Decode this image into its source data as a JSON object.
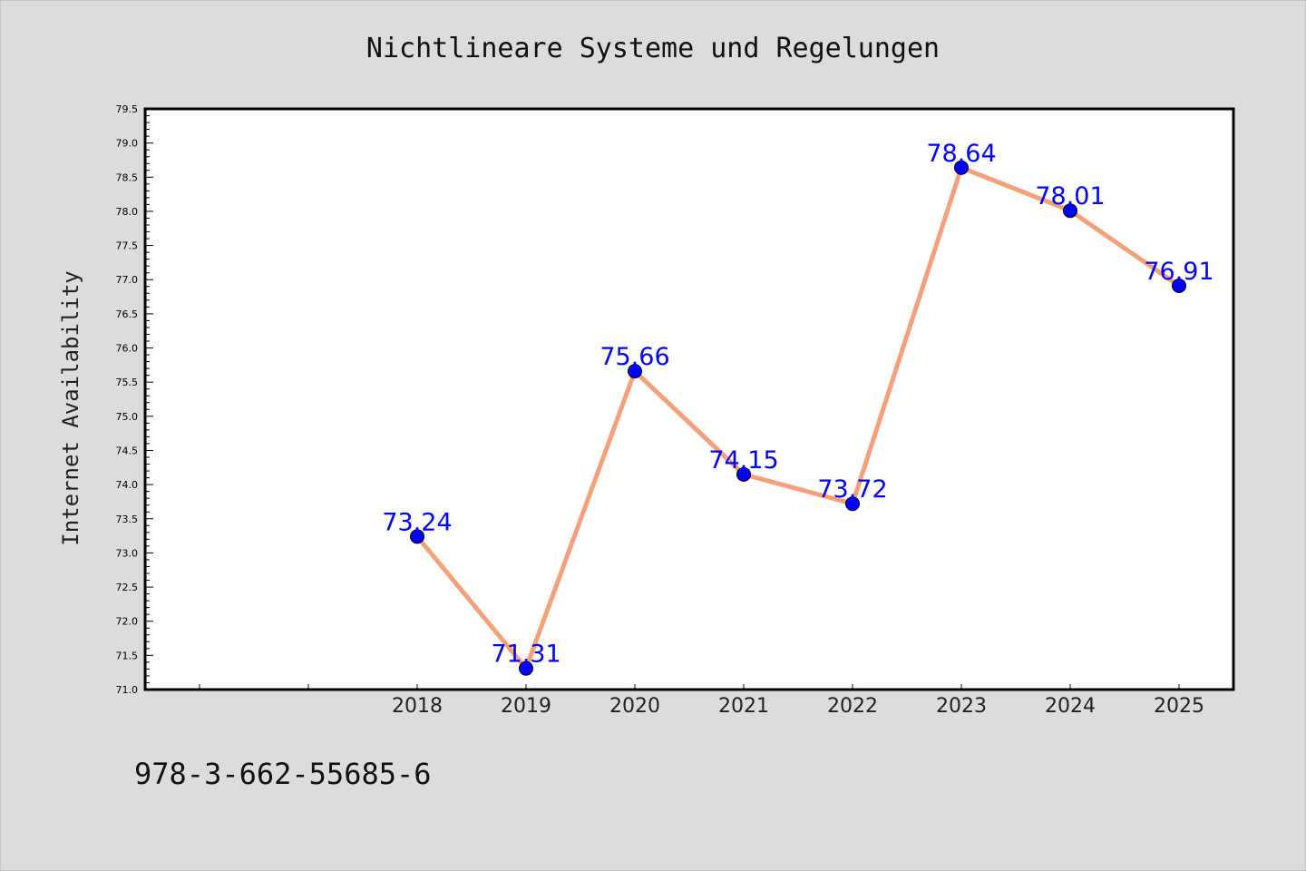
{
  "chart_data": {
    "type": "line",
    "title": "Nichtlineare Systeme und Regelungen",
    "xlabel": "",
    "ylabel": "Internet Availability",
    "categories": [
      "2018",
      "2019",
      "2020",
      "2021",
      "2022",
      "2023",
      "2024",
      "2025"
    ],
    "series": [
      {
        "values": [
          73.24,
          71.31,
          75.66,
          74.15,
          73.72,
          78.64,
          78.01,
          76.91
        ],
        "line_color": "#f5a07a",
        "marker_color": "#0000ff"
      }
    ],
    "data_labels": [
      "73.24",
      "71.31",
      "75.66",
      "74.15",
      "73.72",
      "78.64",
      "78.01",
      "76.91"
    ],
    "ylim": [
      71.0,
      79.5
    ],
    "yticks": [
      "71.0",
      "71.5",
      "72.0",
      "72.5",
      "73.0",
      "73.5",
      "74.0",
      "74.5",
      "75.0",
      "75.5",
      "76.0",
      "76.5",
      "77.0",
      "77.5",
      "78.0",
      "78.5",
      "79.0",
      "79.5"
    ],
    "grid": false,
    "legend": "none",
    "label_color": "#0000ff",
    "background": "#dcdcdc",
    "plot_background": "#ffffff"
  },
  "footer_text": "978-3-662-55685-6"
}
